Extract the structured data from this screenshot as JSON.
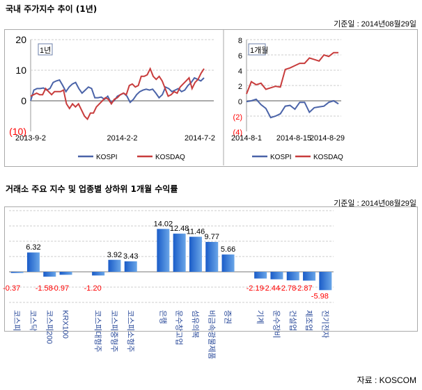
{
  "section1": {
    "title": "국내 주가지수 추이 (1년)",
    "date": "기준일 : 2014년08월29일"
  },
  "section2": {
    "title": "거래소 주요 지수 및 업종별 상하위 1개월 수익률",
    "date": "기준일 : 2014년08월29일"
  },
  "source": "자료 : KOSCOM",
  "colors": {
    "kospi": "#4a63a8",
    "kosdaq": "#c83c3c",
    "bar": "#2f6fd0",
    "negative_label": "#ff0000"
  },
  "chart_data": [
    {
      "type": "line",
      "badge": "1년",
      "ylim": [
        -10,
        20
      ],
      "yticks": [
        "20",
        "10",
        "0",
        "(10)"
      ],
      "ytick_values": [
        20,
        10,
        0,
        -10
      ],
      "xticks": [
        "2013-9-2",
        "2014-2-2",
        "2014-7-2"
      ],
      "grid": true,
      "legend": "bottom",
      "series": [
        {
          "name": "KOSPI",
          "values": [
            0,
            3.5,
            4,
            4,
            4.2,
            3.5,
            4,
            6,
            6.5,
            6.8,
            5,
            3,
            4.5,
            5.5,
            6,
            4,
            2.5,
            3.5,
            4.5,
            4,
            1,
            1,
            1.2,
            0.5,
            1.5,
            -0.5,
            0,
            1.5,
            2,
            2.5,
            1.5,
            -0.5,
            0.5,
            2,
            3,
            3.5,
            3.8,
            3.5,
            3.8,
            2.5,
            1,
            2,
            4.5,
            4,
            3,
            3.5,
            4,
            3,
            3.5,
            5,
            6,
            7.5,
            7,
            6.5,
            7.5
          ]
        },
        {
          "name": "KOSDAQ",
          "values": [
            1.5,
            2,
            2.5,
            2,
            2,
            4,
            3,
            2,
            3,
            3,
            3,
            3.5,
            -1,
            -2.5,
            -1,
            -2,
            -1,
            -3,
            -5,
            -6,
            -4,
            -4,
            -2,
            -1,
            0,
            1,
            0.5,
            -1,
            0.5,
            1,
            2,
            2.5,
            2,
            5,
            5.5,
            4.5,
            5,
            8,
            8,
            8.5,
            10.5,
            8,
            7,
            8,
            6.5,
            4,
            1.5,
            2,
            3,
            2.5,
            4.5,
            5.5,
            6.5,
            7.5,
            4,
            6,
            7,
            9,
            10.5
          ]
        }
      ]
    },
    {
      "type": "line",
      "badge": "1개월",
      "ylim": [
        -4,
        8
      ],
      "yticks": [
        "8",
        "6",
        "4",
        "2",
        "0",
        "(2)",
        "(4)"
      ],
      "ytick_values": [
        8,
        6,
        4,
        2,
        0,
        -2,
        -4
      ],
      "xticks": [
        "2014-8-1",
        "2014-8-15",
        "2014-8-29"
      ],
      "grid": true,
      "legend": "bottom",
      "series": [
        {
          "name": "KOSPI",
          "values": [
            -0.1,
            0,
            0.2,
            -0.5,
            -1,
            -2.2,
            -2,
            -1.7,
            -0.7,
            -0.6,
            -1.1,
            -0.2,
            -0.2,
            -1.5,
            -0.9,
            -0.8,
            -0.7,
            -0.2,
            0,
            -0.4
          ]
        },
        {
          "name": "KOSDAQ",
          "values": [
            0.9,
            2.5,
            2.1,
            2.3,
            1.5,
            1.7,
            1.9,
            1.8,
            4.1,
            4.3,
            4.6,
            4.9,
            4.9,
            5.6,
            5.4,
            5.2,
            6,
            5.8,
            6.3,
            6.3
          ]
        }
      ]
    },
    {
      "type": "bar",
      "ylim": [
        -10,
        20
      ],
      "grid": true,
      "categories": [
        "코스피",
        "코스닥",
        "코스피200",
        "KRX100",
        "",
        "코스피대형주",
        "코스피중형주",
        "코스피소형주",
        "",
        "은행",
        "운수창고업",
        "섬유의복",
        "비금속광물제품",
        "증권",
        "",
        "기계",
        "운수장비",
        "건설업",
        "제조업",
        "전기전자"
      ],
      "values": [
        -0.37,
        6.32,
        -1.58,
        -0.97,
        null,
        -1.2,
        3.92,
        3.43,
        null,
        14.02,
        12.48,
        11.46,
        9.77,
        5.66,
        null,
        -2.19,
        -2.44,
        -2.78,
        -2.87,
        -5.98
      ],
      "labels": [
        "-0.37",
        "6.32",
        "-1.58",
        "-0.97",
        "",
        "-1.20",
        "3.92",
        "3.43",
        "",
        "14.02",
        "12.48",
        "11.46",
        "9.77",
        "5.66",
        "",
        "-2.19",
        "-2.44",
        "-2.78",
        "-2.87",
        "-5.98"
      ]
    }
  ]
}
